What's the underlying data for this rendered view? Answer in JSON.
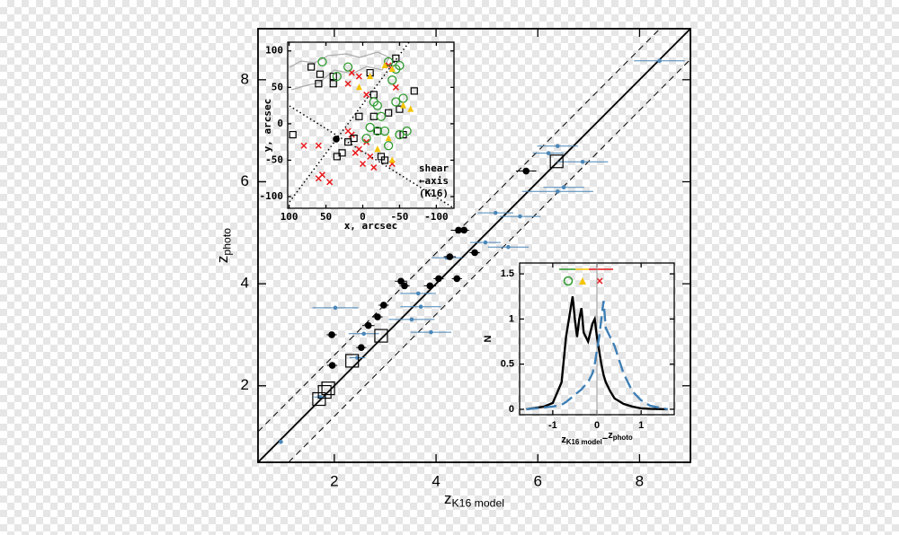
{
  "chart_data": [
    {
      "type": "scatter",
      "xlabel": {
        "text": "z",
        "sub": "K16 model"
      },
      "ylabel": {
        "text": "z",
        "sub": "photo"
      },
      "xlim": [
        0.5,
        9
      ],
      "ylim": [
        0.5,
        9
      ],
      "xticks": [
        2,
        4,
        6,
        8
      ],
      "yticks": [
        2,
        4,
        6,
        8
      ],
      "one_to_one": true,
      "band_offset": 0.6,
      "series": [
        {
          "color": "#4a86b8",
          "marker": "dot",
          "x": [
            0.95,
            1.72,
            2.02,
            2.58,
            2.45,
            3.52,
            3.9,
            3.65,
            3.7,
            4.21,
            4.97,
            5.42,
            5.17,
            5.65,
            6.39,
            6.39,
            6.21,
            6.51,
            6.88,
            8.39
          ],
          "values": [
            0.9,
            1.78,
            3.53,
            3.02,
            2.55,
            3.3,
            3.05,
            3.81,
            3.55,
            4.51,
            4.81,
            4.72,
            5.39,
            5.32,
            5.81,
            6.7,
            6.56,
            5.89,
            6.39,
            8.37
          ],
          "xerr": [
            0,
            0.12,
            0.45,
            0.3,
            0.15,
            0.45,
            0.4,
            0.35,
            0.4,
            0.3,
            0.3,
            0.4,
            0.35,
            0.4,
            0.7,
            0.4,
            0.3,
            0.4,
            0.5,
            0.5
          ]
        },
        {
          "color": "#000000",
          "marker": "disc",
          "x": [
            1.96,
            1.95,
            2.53,
            2.67,
            2.85,
            2.97,
            3.31,
            3.38,
            3.88,
            4.05,
            4.41,
            4.27,
            4.44,
            4.55,
            4.76,
            5.77
          ],
          "values": [
            2.4,
            3.0,
            2.75,
            3.18,
            3.35,
            3.58,
            4.05,
            3.96,
            3.96,
            4.1,
            4.1,
            4.53,
            5.05,
            5.05,
            4.61,
            6.21
          ],
          "xerr": [
            0.1,
            0.1,
            0.1,
            0.12,
            0.1,
            0.1,
            0.12,
            0.1,
            0.12,
            0.1,
            0.1,
            0.12,
            0.15,
            0.1,
            0.1,
            0.2
          ]
        },
        {
          "color": "#000000",
          "marker": "square",
          "x": [
            1.7,
            1.81,
            1.88,
            2.35,
            2.92,
            6.37
          ],
          "values": [
            1.74,
            1.88,
            1.95,
            2.49,
            2.98,
            6.4
          ]
        }
      ]
    },
    {
      "type": "scatter",
      "xlabel": "x, arcsec",
      "ylabel": "y, arcsec",
      "xlim": [
        102,
        -124
      ],
      "ylim": [
        -116,
        112
      ],
      "xticks": [
        100,
        50,
        0,
        -50,
        -100
      ],
      "yticks": [
        100,
        50,
        0,
        -50,
        -100
      ],
      "annotation": [
        "shear",
        "←axis",
        "(K16)"
      ],
      "series": [
        {
          "color": "#e8191b",
          "marker": "x",
          "x": [
            60,
            55,
            60,
            45,
            10,
            5,
            -5,
            -10,
            0,
            15,
            20,
            -15,
            -40,
            -35,
            15,
            20,
            5,
            -5,
            -45,
            80
          ],
          "values": [
            -30,
            -70,
            -75,
            -80,
            -40,
            -35,
            -25,
            -45,
            -55,
            -15,
            -10,
            -60,
            -55,
            80,
            70,
            55,
            65,
            40,
            50,
            -30
          ]
        },
        {
          "color": "#000000",
          "marker": "square-small",
          "x": [
            70,
            58,
            40,
            40,
            60,
            -10,
            -15,
            -55,
            -50,
            -20,
            -15,
            5,
            20,
            28,
            35,
            -35,
            -30,
            -25,
            95,
            -45,
            -70,
            12
          ],
          "values": [
            78,
            68,
            55,
            65,
            55,
            70,
            40,
            -15,
            20,
            -10,
            10,
            10,
            -25,
            -40,
            -45,
            15,
            -50,
            -45,
            -15,
            90,
            45,
            -20
          ]
        },
        {
          "color": "#2e9a2e",
          "marker": "ring",
          "x": [
            55,
            35,
            20,
            -35,
            -45,
            -50,
            -40,
            -25,
            -20,
            -30,
            -10,
            -20,
            -45,
            -55,
            -60,
            -50,
            -35,
            -5,
            -15
          ],
          "values": [
            85,
            65,
            78,
            85,
            75,
            80,
            60,
            10,
            -10,
            -10,
            -5,
            25,
            30,
            35,
            -10,
            -15,
            -30,
            -20,
            30
          ]
        },
        {
          "color": "#f5c400",
          "marker": "triangle",
          "x": [
            -30,
            -10,
            5,
            -40,
            -20,
            -55,
            -65,
            -35,
            -40
          ],
          "values": [
            80,
            65,
            50,
            -50,
            -35,
            25,
            20,
            -20,
            75
          ]
        },
        {
          "color": "#000000",
          "marker": "disc",
          "x": [
            36
          ],
          "values": [
            -21
          ]
        }
      ]
    },
    {
      "type": "line",
      "xlabel": {
        "text": "z",
        "sub": "K16 model",
        "minus": "−",
        "text2": "z",
        "sub2": "photo"
      },
      "ylabel": "N",
      "xlim": [
        -1.75,
        1.75
      ],
      "ylim": [
        -0.06,
        1.62
      ],
      "xticks": [
        -1,
        0,
        1
      ],
      "yticks": [
        0,
        0.5,
        1,
        1.5
      ],
      "vline": 0,
      "x": [
        -1.6,
        -1.2,
        -1.0,
        -0.8,
        -0.7,
        -0.6,
        -0.55,
        -0.5,
        -0.45,
        -0.4,
        -0.35,
        -0.3,
        -0.2,
        -0.1,
        -0.05,
        0,
        0.05,
        0.1,
        0.15,
        0.2,
        0.3,
        0.4,
        0.5,
        0.6,
        0.8,
        1.0,
        1.2,
        1.6
      ],
      "series": [
        {
          "color": "#000000",
          "dash": false,
          "values": [
            0,
            0.03,
            0.07,
            0.3,
            0.8,
            1.1,
            1.25,
            1.0,
            0.8,
            1.0,
            1.12,
            0.85,
            0.75,
            0.95,
            1.0,
            0.8,
            0.65,
            0.5,
            0.38,
            0.3,
            0.2,
            0.12,
            0.09,
            0.06,
            0.03,
            0.01,
            0.005,
            0
          ]
        },
        {
          "color": "#3f7fb5",
          "dash": true,
          "values": [
            0,
            0.02,
            0.03,
            0.05,
            0.08,
            0.12,
            0.14,
            0.16,
            0.18,
            0.2,
            0.22,
            0.25,
            0.3,
            0.4,
            0.5,
            0.65,
            0.8,
            1.0,
            1.2,
            0.9,
            0.8,
            0.7,
            0.55,
            0.4,
            0.2,
            0.1,
            0.04,
            0
          ]
        }
      ]
    }
  ]
}
